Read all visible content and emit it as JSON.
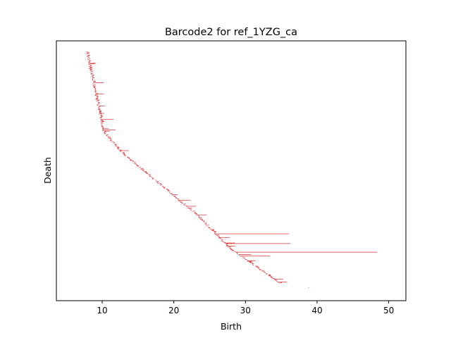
{
  "chart_data": {
    "type": "barcode",
    "title": "Barcode2 for ref_1YZG_ca",
    "xlabel": "Birth",
    "ylabel": "Death",
    "xlim": [
      3.6,
      52.4
    ],
    "xticks": [
      "10",
      "20",
      "30",
      "40",
      "50"
    ],
    "xtick_values": [
      10,
      20,
      30,
      40,
      50
    ],
    "yticks_visible": false,
    "grid": false,
    "bar_color": "#d62728",
    "bar_count": 380,
    "long_bars": [
      {
        "start": 25.8,
        "end": 36.1
      },
      {
        "start": 27.2,
        "end": 36.3
      },
      {
        "start": 28.6,
        "end": 48.4
      },
      {
        "start": 29.2,
        "end": 33.4
      }
    ],
    "last_point": {
      "start": 38.8,
      "end": 38.8
    }
  }
}
